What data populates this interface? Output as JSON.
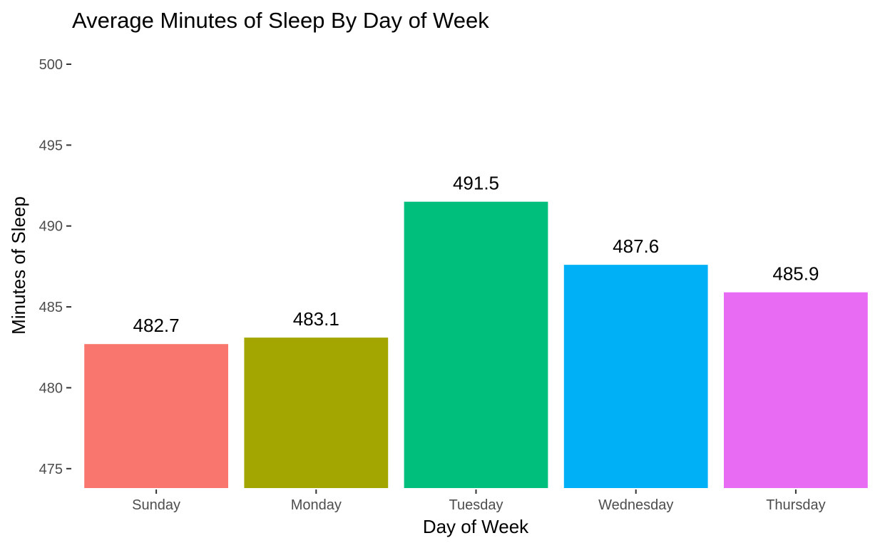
{
  "chart_data": {
    "type": "bar",
    "title": "Average Minutes of Sleep By Day of Week",
    "xlabel": "Day of Week",
    "ylabel": "Minutes of Sleep",
    "categories": [
      "Sunday",
      "Monday",
      "Tuesday",
      "Wednesday",
      "Thursday"
    ],
    "values": [
      482.7,
      483.1,
      491.5,
      487.6,
      485.9
    ],
    "value_labels": [
      "482.7",
      "483.1",
      "491.5",
      "487.6",
      "485.9"
    ],
    "colors": [
      "#F8766D",
      "#A3A500",
      "#00BF7D",
      "#00B0F6",
      "#E76BF3"
    ],
    "yticks": [
      475,
      480,
      485,
      490,
      495,
      500
    ],
    "ylim": [
      473.8,
      500
    ],
    "grid": false,
    "legend": "none"
  }
}
